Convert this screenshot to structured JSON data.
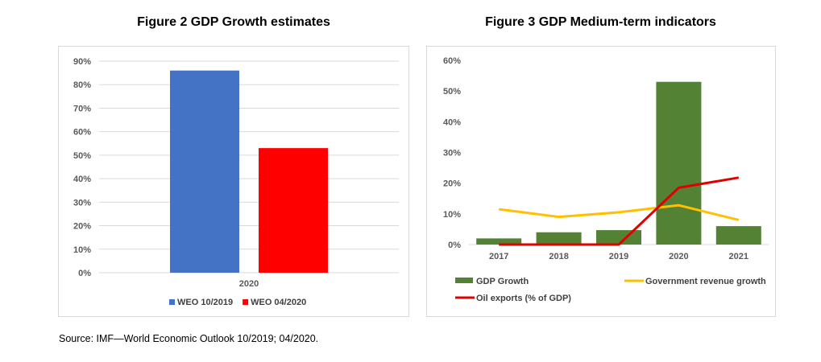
{
  "figures": {
    "fig2_title": "Figure 2 GDP Growth estimates",
    "fig3_title": "Figure 3 GDP Medium-term indicators"
  },
  "source": "Source: IMF—World Economic Outlook 10/2019; 04/2020.",
  "chart_data": [
    {
      "type": "bar",
      "title": "Figure 2 GDP Growth estimates",
      "categories": [
        "2020"
      ],
      "series": [
        {
          "name": "WEO 10/2019",
          "values": [
            86
          ],
          "color": "#4472C4"
        },
        {
          "name": "WEO 04/2020",
          "values": [
            53
          ],
          "color": "#FF0000"
        }
      ],
      "yticks": [
        "0%",
        "10%",
        "20%",
        "30%",
        "40%",
        "50%",
        "60%",
        "70%",
        "80%",
        "90%"
      ],
      "ylim": [
        0,
        90
      ],
      "legend": "bottom",
      "grid": true
    },
    {
      "type": "bar",
      "title": "Figure 3 GDP Medium-term indicators",
      "categories": [
        "2017",
        "2018",
        "2019",
        "2020",
        "2021"
      ],
      "series": [
        {
          "name": "GDP Growth",
          "kind": "bar",
          "values": [
            2.0,
            4.0,
            4.7,
            53.0,
            6.0
          ],
          "color": "#548235"
        },
        {
          "name": "Government revenue growth",
          "kind": "line",
          "values": [
            11.5,
            9.0,
            10.5,
            12.8,
            8.0
          ],
          "color": "#FFC000"
        },
        {
          "name": "Oil exports (% of GDP)",
          "kind": "line",
          "values": [
            0,
            0,
            0,
            18.5,
            21.8
          ],
          "color": "#E00000"
        }
      ],
      "yticks": [
        "0%",
        "10%",
        "20%",
        "30%",
        "40%",
        "50%",
        "60%"
      ],
      "ylim": [
        0,
        60
      ],
      "legend": "bottom",
      "grid": false
    }
  ]
}
